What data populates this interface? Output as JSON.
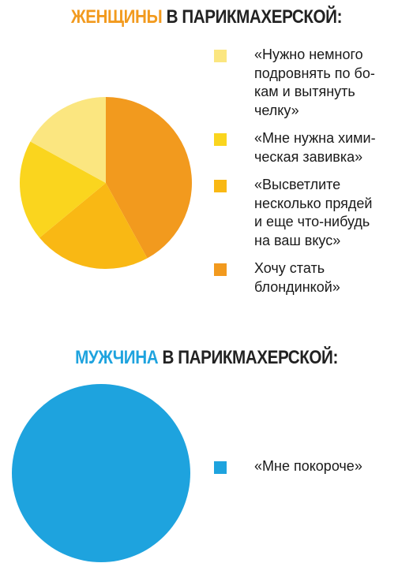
{
  "headers": {
    "women": {
      "accent": "ЖЕНЩИНЫ",
      "rest": " В ПАРИКМАХЕРСКОЙ:"
    },
    "men": {
      "accent": "МУЖЧИНА",
      "rest": " В ПАРИКМАХЕРСКОЙ:"
    }
  },
  "colors": {
    "women_accent": "#f29a1e",
    "men_accent": "#1ea3de"
  },
  "chart_data": [
    {
      "type": "pie",
      "title": "ЖЕНЩИНЫ В ПАРИКМАХЕРСКОЙ:",
      "slices": [
        {
          "label": "«Нужно немного\nподровнять по бо-\nкам и вытянуть\nчелку»",
          "value": 17,
          "color": "#fbe680"
        },
        {
          "label": "«Мне нужна хими-\nческая завивка»",
          "value": 19,
          "color": "#fad51e"
        },
        {
          "label": "«Высветлите\nнесколько прядей\nи еще что-нибудь\nна ваш вкус»",
          "value": 22,
          "color": "#f9b814"
        },
        {
          "label": "Хочу стать\nблондинкой»",
          "value": 42,
          "color": "#f29a1e"
        }
      ],
      "legend_position": "right"
    },
    {
      "type": "pie",
      "title": "МУЖЧИНА В ПАРИКМАХЕРСКОЙ:",
      "slices": [
        {
          "label": "«Мне покороче»",
          "value": 100,
          "color": "#1ea3de"
        }
      ],
      "legend_position": "right"
    }
  ]
}
